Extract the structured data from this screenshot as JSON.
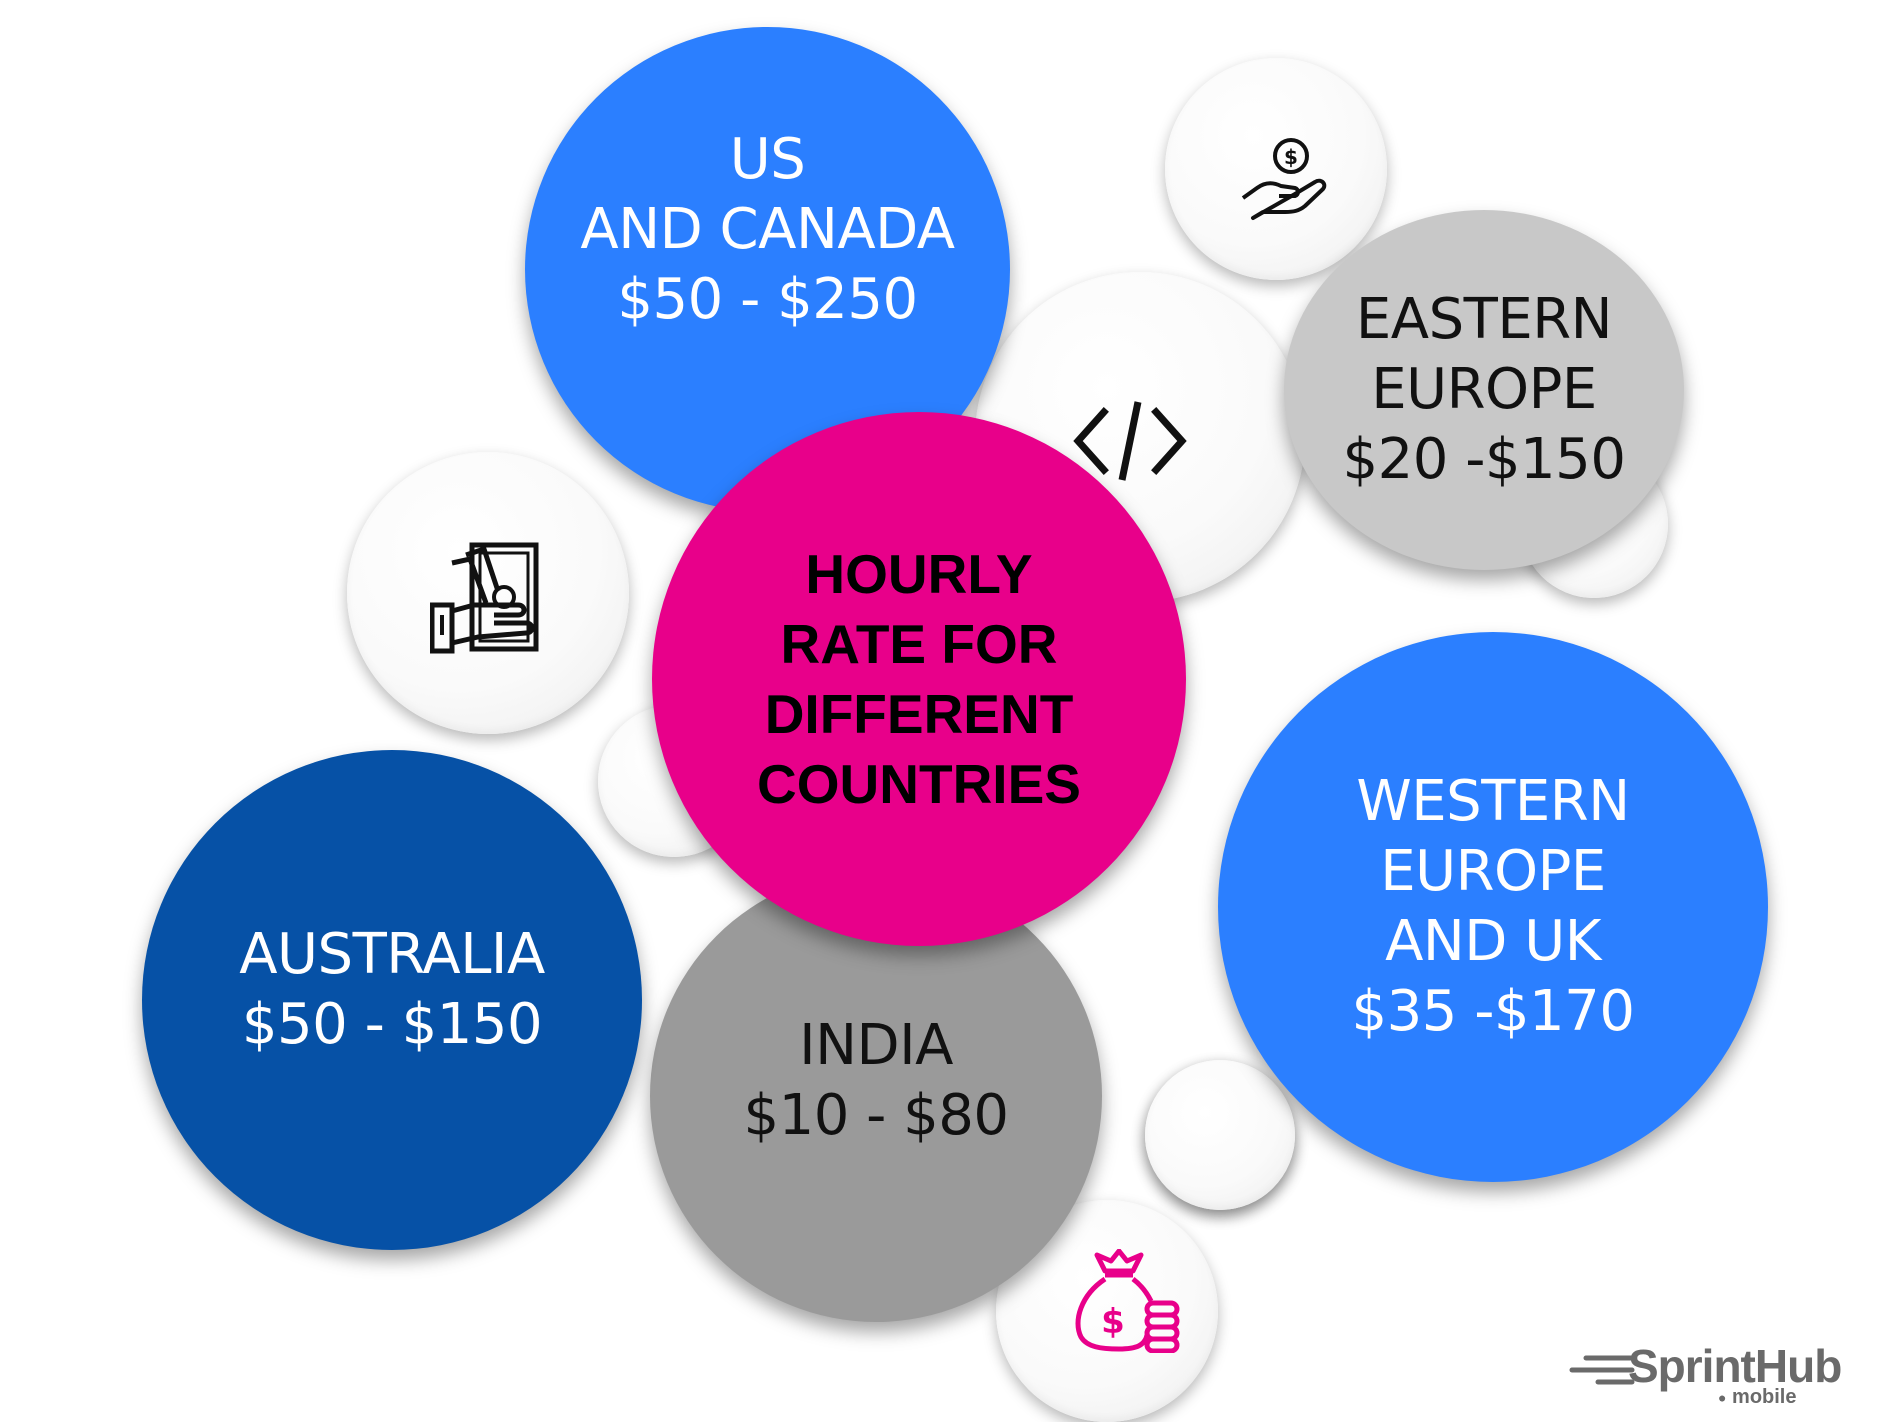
{
  "center": {
    "lines": [
      "HOURLY",
      "RATE FOR",
      "DIFFERENT",
      "COUNTRIES"
    ]
  },
  "regions": {
    "us_canada": {
      "lines": [
        "US",
        "AND CANADA",
        "$50 - $250"
      ],
      "color": "#2b7fff"
    },
    "eastern_europe": {
      "lines": [
        "EASTERN",
        "EUROPE",
        "$20 -$150"
      ],
      "color": "#c8c8c8"
    },
    "western_europe": {
      "lines": [
        "WESTERN",
        "EUROPE",
        "AND UK",
        "$35 -$170"
      ],
      "color": "#2b7fff"
    },
    "australia": {
      "lines": [
        "AUSTRALIA",
        "$50 - $150"
      ],
      "color": "#0651a6"
    },
    "india": {
      "lines": [
        "INDIA",
        "$10 - $80"
      ],
      "color": "#9a9a9a"
    }
  },
  "center_color": "#e8008a",
  "icons": {
    "hand_coin": "hand-holding-coin-icon",
    "code": "code-brackets-icon",
    "cash_hand": "hand-holding-cash-icon",
    "money_bag": "money-bag-coins-icon"
  },
  "logo": {
    "name": "SprintHub",
    "sub": "mobile",
    "color": "#6a6a6a"
  }
}
